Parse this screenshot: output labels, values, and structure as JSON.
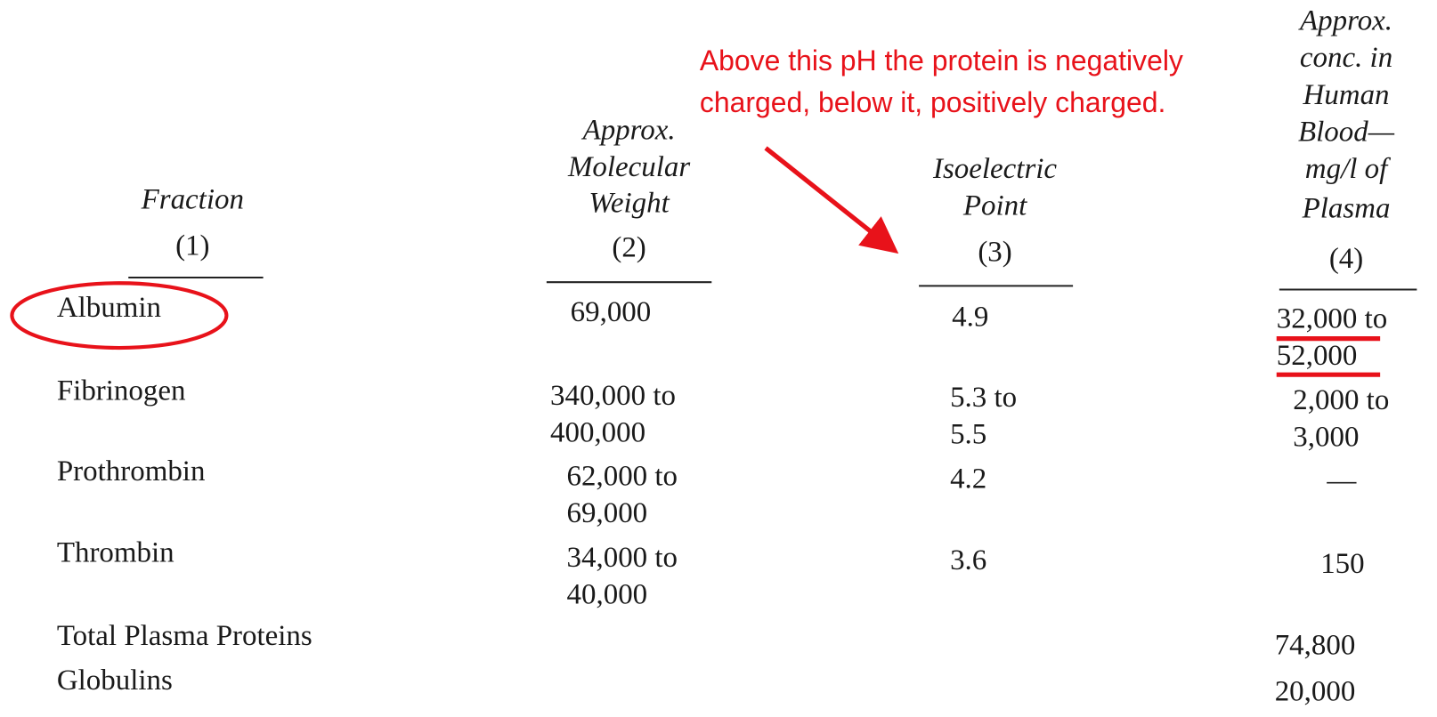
{
  "table": {
    "columns": [
      {
        "heading": [
          "Fraction"
        ],
        "number": "(1)"
      },
      {
        "heading": [
          "Approx.",
          "Molecular",
          "Weight"
        ],
        "number": "(2)"
      },
      {
        "heading": [
          "Isoelectric",
          "Point"
        ],
        "number": "(3)"
      },
      {
        "heading": [
          "Approx.",
          "conc. in",
          "Human",
          "Blood—",
          "mg/l of",
          "Plasma"
        ],
        "number": "(4)"
      }
    ],
    "rows": [
      {
        "fraction": "Albumin",
        "cells": [
          [
            "69,000"
          ],
          [
            "4.9"
          ],
          [
            "32,000 to",
            "52,000"
          ]
        ]
      },
      {
        "fraction": "Fibrinogen",
        "cells": [
          [
            "340,000 to",
            "400,000"
          ],
          [
            "5.3 to",
            "5.5"
          ],
          [
            "2,000 to",
            "3,000"
          ]
        ]
      },
      {
        "fraction": "Prothrombin",
        "cells": [
          [
            "62,000 to",
            "69,000"
          ],
          [
            "4.2"
          ],
          [
            "—"
          ]
        ]
      },
      {
        "fraction": "Thrombin",
        "cells": [
          [
            "34,000 to",
            "40,000"
          ],
          [
            "3.6"
          ],
          [
            "150"
          ]
        ]
      },
      {
        "fraction": "Total Plasma Proteins",
        "cells": [
          [],
          [],
          [
            "74,800"
          ]
        ]
      },
      {
        "fraction": "Globulins",
        "cells": [
          [],
          [],
          [
            "20,000"
          ]
        ]
      }
    ]
  },
  "annotation": {
    "lines": [
      "Above this pH the protein is negatively",
      "charged, below it, positively charged."
    ]
  }
}
